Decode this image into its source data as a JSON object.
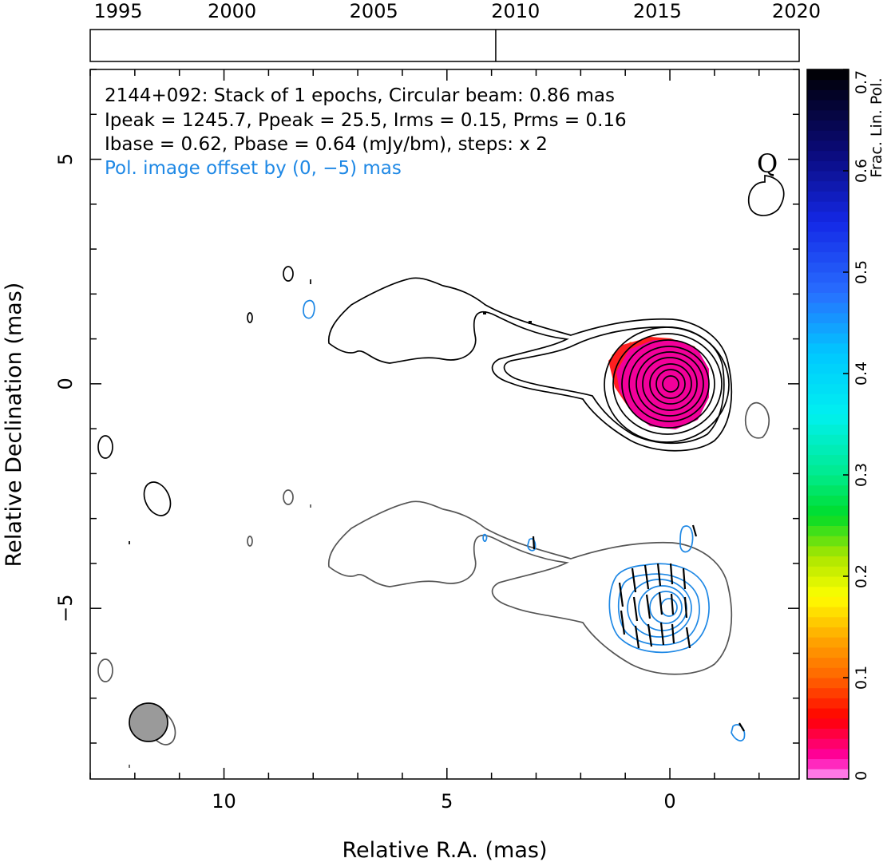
{
  "chart_data": [
    {
      "type": "timeline",
      "ticks": [
        "1995",
        "2000",
        "2005",
        "2010",
        "2015",
        "2020"
      ],
      "xlim": [
        1995,
        2020
      ],
      "epochs": [
        2009.3
      ]
    },
    {
      "type": "contour",
      "source": "2144+092",
      "annotations": [
        "2144+092: Stack of 1 epochs, Circular beam: 0.86 mas",
        "Ipeak = 1245.7, Ppeak = 25.5, Irms = 0.15, Prms = 0.16",
        "Ibase = 0.62, Pbase = 0.64 (mJy/bm), steps: x 2"
      ],
      "pol_offset_note": "Pol. image offset by (0, −5) mas",
      "corner_label": "Q",
      "xlabel": "Relative R.A. (mas)",
      "ylabel": "Relative Declination (mas)",
      "xlim": [
        13,
        -2.9
      ],
      "ylim": [
        -8.8,
        7
      ],
      "x_ticks": [
        {
          "value": 10,
          "label": "10"
        },
        {
          "value": 5,
          "label": "5"
        },
        {
          "value": 0,
          "label": "0"
        }
      ],
      "y_ticks": [
        {
          "value": 5,
          "label": "5"
        },
        {
          "value": 0,
          "label": "0"
        },
        {
          "value": -5,
          "label": "−5"
        }
      ],
      "core_position": [
        0,
        0
      ],
      "pol_core_position": [
        0,
        -5
      ],
      "beam": {
        "ra": 11.6,
        "dec": -7.5,
        "diameter_mas": 0.86
      },
      "colors": {
        "stokes_i_contour": "#000000",
        "offset_total_contour": "#555555",
        "polarization_contour": "#1e88e5",
        "evpa_ticks": "#000000",
        "beam_fill": "#9a9a9a"
      }
    },
    {
      "type": "colorbar",
      "label": "Frac. Lin. Pol.",
      "range": [
        0,
        0.7
      ],
      "ticks": [
        {
          "value": 0,
          "label": "0"
        },
        {
          "value": 0.1,
          "label": "0.1"
        },
        {
          "value": 0.2,
          "label": "0.2"
        },
        {
          "value": 0.3,
          "label": "0.3"
        },
        {
          "value": 0.4,
          "label": "0.4"
        },
        {
          "value": 0.5,
          "label": "0.5"
        },
        {
          "value": 0.6,
          "label": "0.6"
        },
        {
          "value": 0.7,
          "label": "0.7"
        }
      ]
    }
  ]
}
